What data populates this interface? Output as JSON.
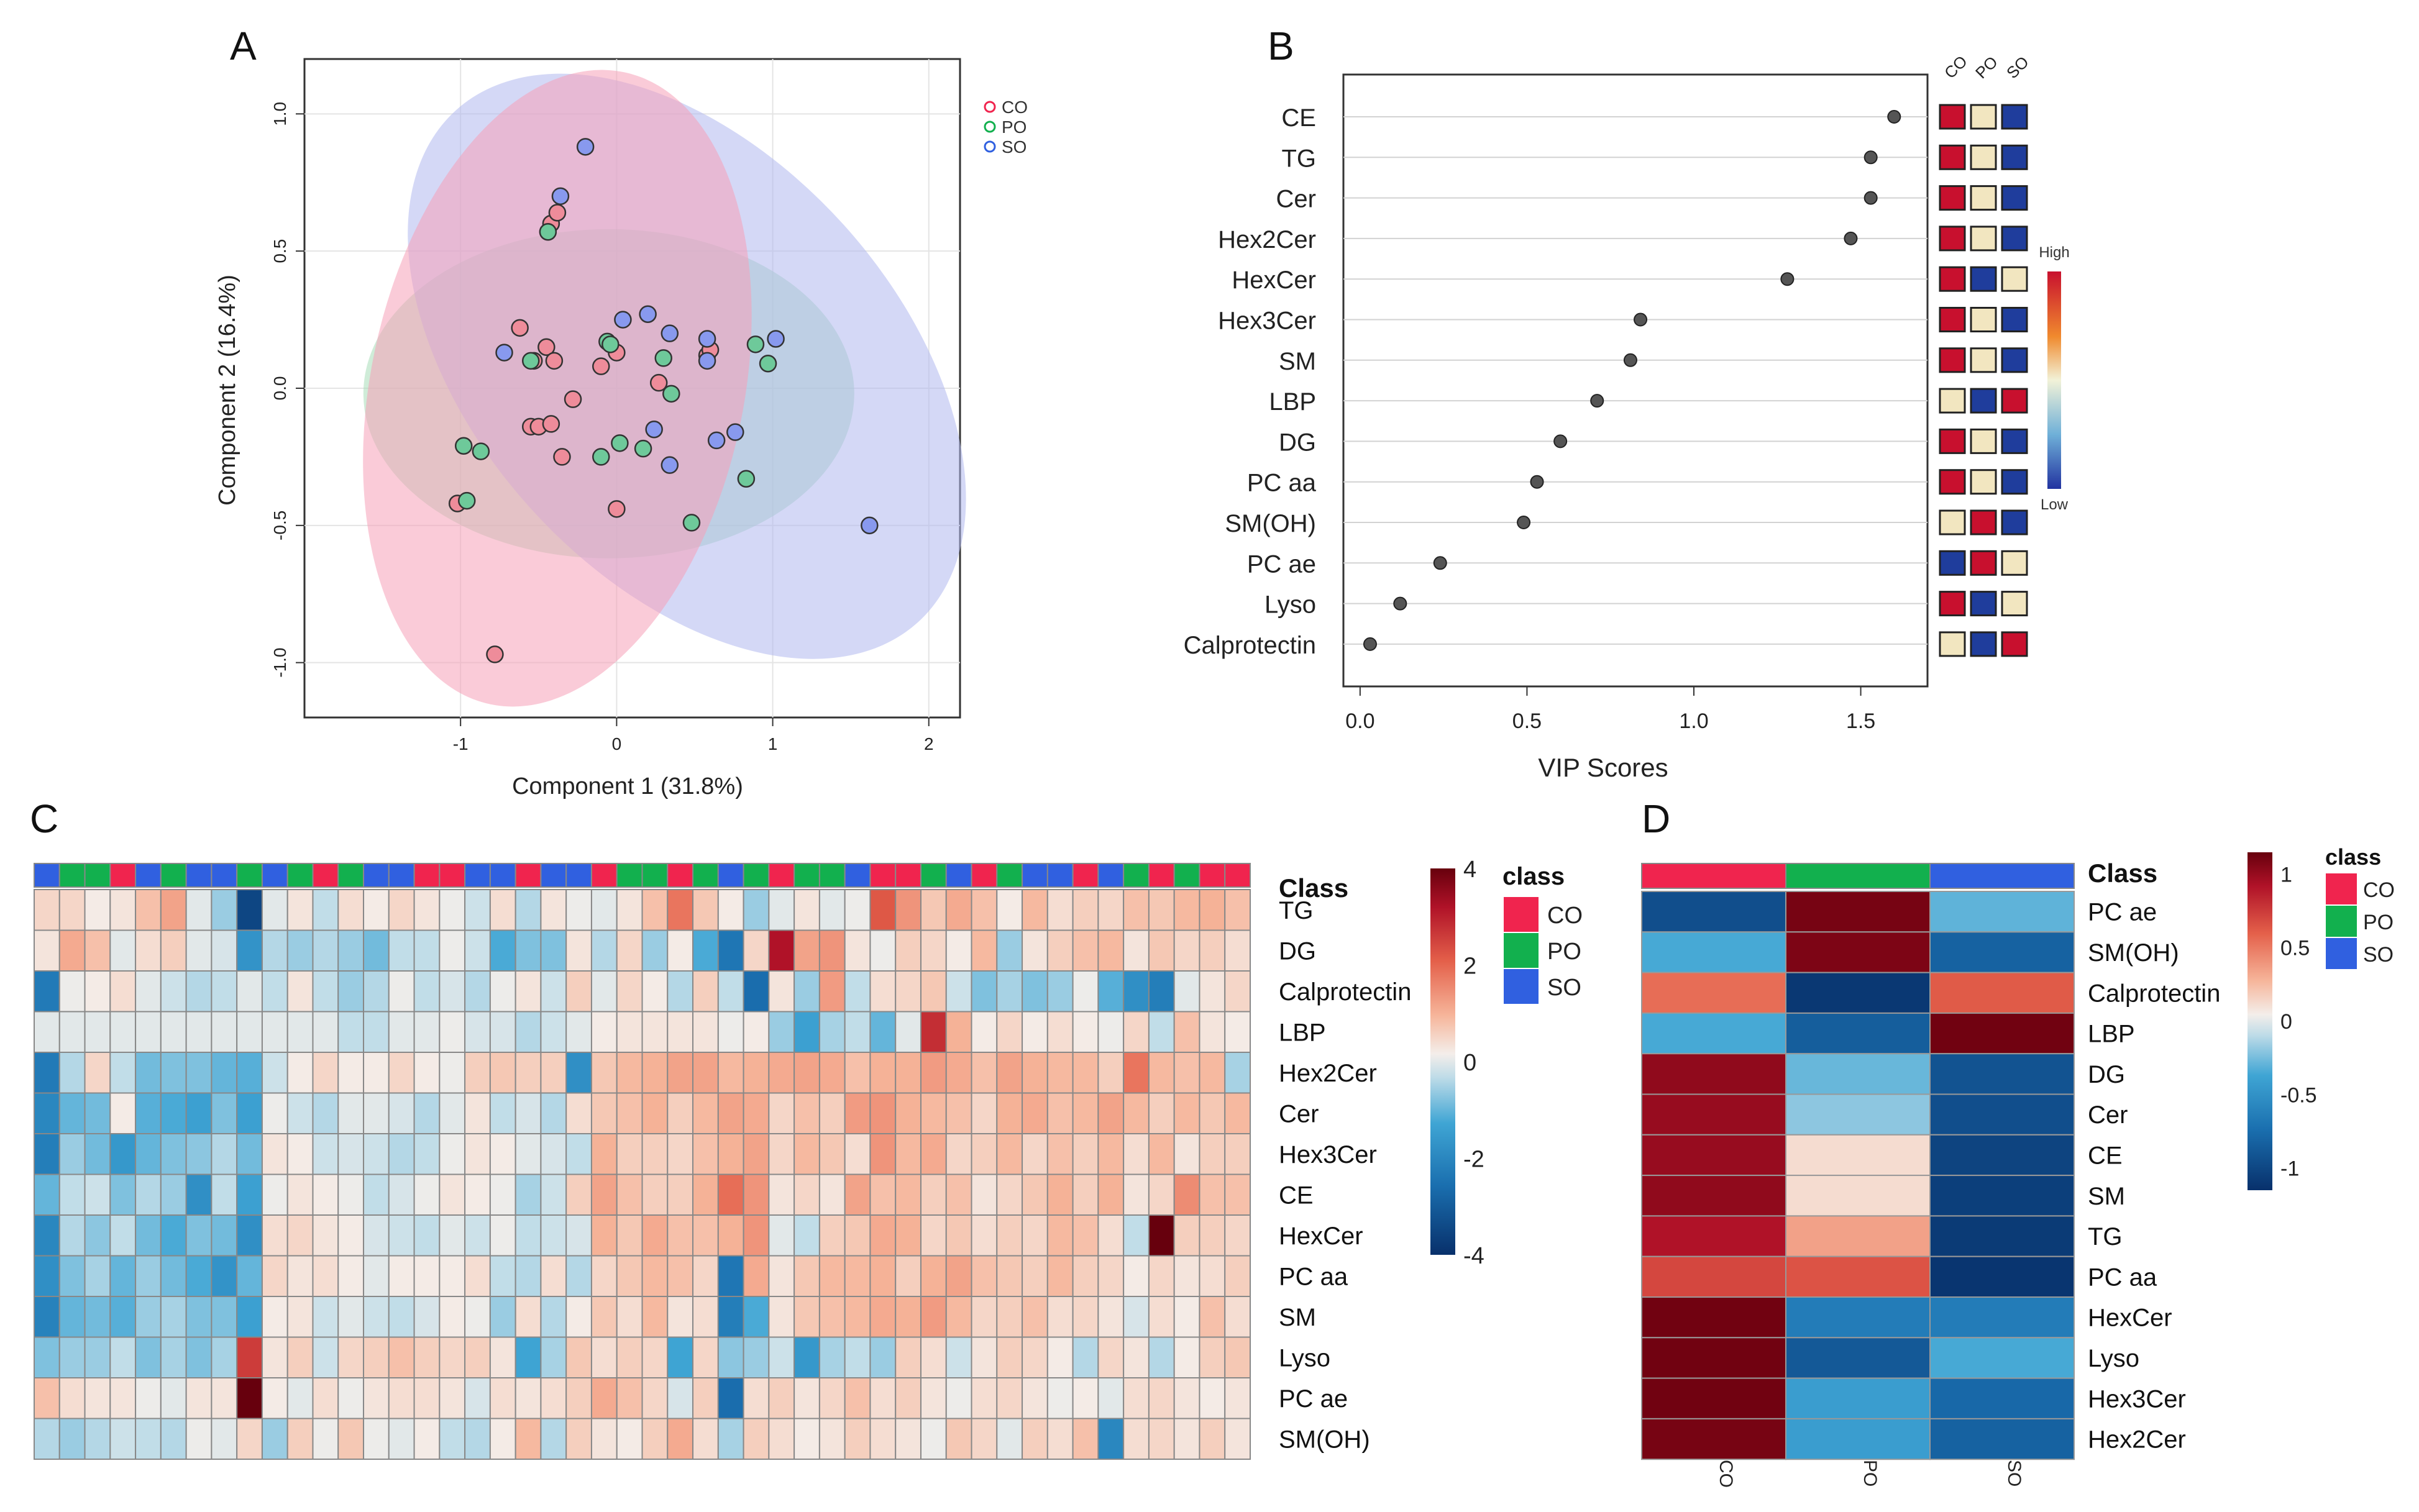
{
  "colors": {
    "CO": "#f0244e",
    "PO": "#12b04e",
    "SO": "#3060e0",
    "co_fill": "#ee8c9a",
    "po_fill": "#6ec99a",
    "so_fill": "#8899ee",
    "ell_co": "#f5a0b8",
    "ell_po": "#a8dcb8",
    "ell_so": "#b0b8ee",
    "heat_low": "#08306b",
    "heat_mid": "#f7f2f0",
    "heat_high": "#67000d",
    "vip_high": "#c8102e",
    "vip_mid": "#f2e6c0",
    "vip_low": "#1f3d9c"
  },
  "panels": {
    "A": "A",
    "B": "B",
    "C": "C",
    "D": "D"
  },
  "chart_data": [
    {
      "panel": "A",
      "type": "scatter",
      "title": "",
      "xlabel": "Component 1 (31.8%)",
      "ylabel": "Component 2 (16.4%)",
      "xlim": [
        -2,
        2.2
      ],
      "ylim": [
        -1.2,
        1.2
      ],
      "xticks": [
        "-1",
        "0",
        "1",
        "2"
      ],
      "yticks": [
        "1.0",
        "0.5",
        "0.0",
        "-0.5",
        "-1.0"
      ],
      "legend": [
        "CO",
        "PO",
        "SO"
      ],
      "series": [
        {
          "name": "CO",
          "points": [
            [
              -0.42,
              0.6
            ],
            [
              -0.38,
              0.64
            ],
            [
              -0.62,
              0.22
            ],
            [
              -0.45,
              0.15
            ],
            [
              -0.28,
              -0.04
            ],
            [
              -0.1,
              0.08
            ],
            [
              0.0,
              0.13
            ],
            [
              0.27,
              0.02
            ],
            [
              0.58,
              0.12
            ],
            [
              0.6,
              0.14
            ],
            [
              -0.53,
              0.1
            ],
            [
              -0.4,
              0.1
            ],
            [
              -0.55,
              -0.14
            ],
            [
              -0.5,
              -0.14
            ],
            [
              -0.42,
              -0.13
            ],
            [
              -0.35,
              -0.25
            ],
            [
              -1.02,
              -0.42
            ],
            [
              0.0,
              -0.44
            ],
            [
              -0.78,
              -0.97
            ]
          ]
        },
        {
          "name": "PO",
          "points": [
            [
              -0.44,
              0.57
            ],
            [
              -0.55,
              0.1
            ],
            [
              -0.06,
              0.17
            ],
            [
              -0.04,
              0.16
            ],
            [
              0.3,
              0.11
            ],
            [
              0.35,
              -0.02
            ],
            [
              0.89,
              0.16
            ],
            [
              0.97,
              0.09
            ],
            [
              -0.98,
              -0.21
            ],
            [
              -0.87,
              -0.23
            ],
            [
              -0.96,
              -0.41
            ],
            [
              -0.1,
              -0.25
            ],
            [
              0.02,
              -0.2
            ],
            [
              0.17,
              -0.22
            ],
            [
              0.48,
              -0.49
            ],
            [
              0.83,
              -0.33
            ]
          ]
        },
        {
          "name": "SO",
          "points": [
            [
              -0.2,
              0.88
            ],
            [
              -0.36,
              0.7
            ],
            [
              0.04,
              0.25
            ],
            [
              0.2,
              0.27
            ],
            [
              0.34,
              0.2
            ],
            [
              0.58,
              0.18
            ],
            [
              1.02,
              0.18
            ],
            [
              0.58,
              0.1
            ],
            [
              -0.72,
              0.13
            ],
            [
              0.24,
              -0.15
            ],
            [
              0.34,
              -0.28
            ],
            [
              0.64,
              -0.19
            ],
            [
              0.76,
              -0.16
            ],
            [
              1.62,
              -0.5
            ]
          ]
        }
      ]
    },
    {
      "panel": "B",
      "type": "dot",
      "xlabel": "VIP Scores",
      "xlim": [
        -0.05,
        1.7
      ],
      "xticks": [
        "0.0",
        "0.5",
        "1.0",
        "1.5"
      ],
      "columns": [
        "CO",
        "PO",
        "SO"
      ],
      "colorbar": {
        "high": "High",
        "low": "Low"
      },
      "categories": [
        "CE",
        "TG",
        "Cer",
        "Hex2Cer",
        "HexCer",
        "Hex3Cer",
        "SM",
        "LBP",
        "DG",
        "PC aa",
        "SM(OH)",
        "PC ae",
        "Lyso",
        "Calprotectin"
      ],
      "values": [
        1.6,
        1.53,
        1.53,
        1.47,
        1.28,
        0.84,
        0.81,
        0.71,
        0.6,
        0.53,
        0.49,
        0.24,
        0.12,
        0.03
      ],
      "levels": [
        [
          "H",
          "M",
          "L"
        ],
        [
          "H",
          "M",
          "L"
        ],
        [
          "H",
          "M",
          "L"
        ],
        [
          "H",
          "M",
          "L"
        ],
        [
          "H",
          "L",
          "M"
        ],
        [
          "H",
          "M",
          "L"
        ],
        [
          "H",
          "M",
          "L"
        ],
        [
          "M",
          "L",
          "H"
        ],
        [
          "H",
          "M",
          "L"
        ],
        [
          "H",
          "M",
          "L"
        ],
        [
          "M",
          "H",
          "L"
        ],
        [
          "L",
          "H",
          "M"
        ],
        [
          "H",
          "L",
          "M"
        ],
        [
          "M",
          "L",
          "H"
        ]
      ]
    },
    {
      "panel": "C",
      "type": "heatmap",
      "row_title": "Class",
      "rows": [
        "TG",
        "DG",
        "Calprotectin",
        "LBP",
        "Hex2Cer",
        "Cer",
        "Hex3Cer",
        "CE",
        "HexCer",
        "PC aa",
        "SM",
        "Lyso",
        "PC ae",
        "SM(OH)"
      ],
      "column_classes": [
        "SO",
        "PO",
        "PO",
        "CO",
        "SO",
        "PO",
        "SO",
        "SO",
        "PO",
        "SO",
        "PO",
        "CO",
        "PO",
        "SO",
        "SO",
        "CO",
        "CO",
        "SO",
        "SO",
        "CO",
        "SO",
        "SO",
        "CO",
        "PO",
        "PO",
        "CO",
        "PO",
        "SO",
        "PO",
        "CO",
        "PO",
        "PO",
        "SO",
        "CO",
        "CO",
        "PO",
        "SO",
        "CO",
        "PO",
        "SO",
        "SO",
        "CO",
        "SO",
        "PO",
        "CO",
        "PO",
        "CO",
        "CO"
      ],
      "legend_title": "class",
      "legend": [
        "CO",
        "PO",
        "SO"
      ],
      "colorbar_ticks": [
        "4",
        "2",
        "0",
        "-2",
        "-4"
      ],
      "value_range": [
        -4,
        4
      ],
      "values": [
        [
          0.5,
          0.5,
          0.2,
          0.3,
          0.8,
          1.2,
          0.0,
          -0.6,
          -3.5,
          0.0,
          0.3,
          -0.3,
          0.4,
          0.2,
          0.5,
          0.3,
          0.1,
          -0.2,
          0.4,
          -0.4,
          0.3,
          0.1,
          0.0,
          0.3,
          0.8,
          1.8,
          0.7,
          0.2,
          -0.6,
          0.0,
          0.3,
          0.0,
          0.1,
          2.2,
          1.4,
          0.7,
          1.1,
          0.8,
          0.2,
          0.9,
          0.4,
          0.6,
          0.5,
          0.8,
          0.7,
          0.9,
          1.0,
          0.8
        ],
        [
          0.3,
          1.1,
          0.8,
          0.0,
          0.4,
          0.6,
          0.0,
          -0.1,
          -1.7,
          -0.4,
          -0.6,
          -0.4,
          -0.6,
          -0.9,
          -0.3,
          -0.3,
          0.1,
          -0.2,
          -1.2,
          -0.8,
          -0.8,
          0.3,
          -0.4,
          0.5,
          -0.6,
          0.2,
          -1.2,
          -2.4,
          0.5,
          3.2,
          1.2,
          1.4,
          0.3,
          0.1,
          0.6,
          0.5,
          0.2,
          0.9,
          -0.6,
          0.3,
          0.6,
          0.8,
          0.9,
          0.3,
          0.7,
          0.5,
          0.6,
          0.4
        ],
        [
          -2.3,
          0.1,
          0.2,
          0.4,
          0.0,
          -0.2,
          -0.4,
          -0.3,
          0.0,
          -0.3,
          0.3,
          -0.3,
          -0.6,
          -0.4,
          0.1,
          -0.3,
          -0.1,
          -0.4,
          0.1,
          0.3,
          -0.2,
          0.6,
          0.0,
          0.5,
          0.2,
          -0.4,
          0.6,
          -0.3,
          -2.6,
          0.3,
          -0.6,
          1.3,
          -0.3,
          0.4,
          0.5,
          0.7,
          -0.2,
          -0.8,
          -0.5,
          -0.8,
          -0.6,
          0.1,
          -1.1,
          -1.8,
          -2.2,
          0.0,
          0.3,
          0.5
        ],
        [
          0.0,
          0.0,
          0.0,
          0.0,
          0.0,
          0.0,
          0.0,
          0.0,
          0.0,
          0.0,
          0.0,
          0.0,
          -0.3,
          -0.3,
          0.0,
          0.0,
          0.1,
          -0.1,
          -0.1,
          -0.4,
          -0.2,
          0.0,
          0.2,
          0.3,
          0.3,
          0.3,
          0.3,
          0.1,
          0.2,
          -0.6,
          -1.4,
          -0.5,
          -0.3,
          -1.0,
          0.0,
          2.8,
          1.0,
          0.2,
          0.5,
          0.2,
          0.4,
          0.2,
          0.1,
          0.5,
          -0.3,
          0.8,
          0.3,
          0.2
        ],
        [
          -2.3,
          -0.4,
          0.5,
          -0.3,
          -0.9,
          -0.8,
          -0.8,
          -1.0,
          -1.1,
          -0.2,
          0.2,
          0.5,
          0.2,
          0.2,
          0.5,
          0.2,
          0.1,
          0.6,
          0.7,
          0.6,
          0.6,
          -1.8,
          0.7,
          0.9,
          1.0,
          1.2,
          1.2,
          0.9,
          1.0,
          1.1,
          1.2,
          1.1,
          0.8,
          1.0,
          1.0,
          1.3,
          1.1,
          0.8,
          1.2,
          1.0,
          0.9,
          0.9,
          0.6,
          1.8,
          0.9,
          0.8,
          0.9,
          -0.5
        ],
        [
          -2.0,
          -1.0,
          -0.9,
          0.2,
          -1.1,
          -1.2,
          -1.4,
          -0.8,
          -1.4,
          0.1,
          -0.2,
          -0.4,
          0.0,
          0.0,
          -0.1,
          -0.4,
          0.0,
          0.3,
          -0.3,
          -0.1,
          -0.4,
          0.4,
          0.7,
          0.8,
          1.0,
          0.6,
          0.9,
          1.2,
          1.1,
          0.5,
          0.8,
          0.6,
          1.3,
          1.4,
          1.0,
          0.9,
          0.8,
          0.5,
          1.0,
          1.1,
          0.8,
          0.9,
          1.2,
          0.9,
          0.6,
          0.9,
          0.7,
          0.9
        ],
        [
          -2.2,
          -0.6,
          -0.9,
          -1.6,
          -1.0,
          -0.8,
          -0.7,
          -0.4,
          -0.9,
          0.3,
          0.2,
          -0.2,
          -0.1,
          -0.2,
          -0.4,
          -0.3,
          0.1,
          0.3,
          0.2,
          0.0,
          -0.1,
          -0.3,
          1.0,
          0.6,
          0.6,
          0.5,
          0.8,
          1.0,
          1.2,
          0.5,
          0.9,
          0.7,
          0.4,
          1.4,
          0.9,
          1.1,
          0.5,
          0.6,
          0.9,
          0.5,
          0.8,
          0.6,
          0.9,
          0.4,
          0.9,
          0.3,
          0.6,
          0.6
        ],
        [
          -1.0,
          -0.3,
          -0.2,
          -0.8,
          -0.4,
          -0.6,
          -1.8,
          -0.3,
          -1.4,
          0.1,
          0.3,
          0.2,
          0.1,
          -0.3,
          -0.1,
          0.1,
          0.3,
          0.2,
          0.1,
          -0.5,
          -0.2,
          0.6,
          1.2,
          0.8,
          0.6,
          0.6,
          1.0,
          1.9,
          1.4,
          0.3,
          0.5,
          0.3,
          1.2,
          0.8,
          0.9,
          0.6,
          0.8,
          0.3,
          0.5,
          0.7,
          1.0,
          0.6,
          1.0,
          0.3,
          0.5,
          1.5,
          0.8,
          0.8
        ],
        [
          -2.0,
          -0.4,
          -0.7,
          -0.3,
          -0.9,
          -1.2,
          -0.8,
          -0.9,
          -1.8,
          0.4,
          0.5,
          0.3,
          0.2,
          -0.1,
          -0.2,
          -0.3,
          0.0,
          -0.2,
          0.1,
          -0.3,
          -0.2,
          -0.1,
          1.0,
          0.7,
          1.1,
          0.8,
          0.8,
          1.0,
          1.4,
          0.0,
          -0.3,
          0.6,
          0.7,
          1.1,
          1.0,
          0.5,
          0.7,
          0.4,
          0.6,
          0.5,
          0.9,
          0.8,
          0.4,
          -0.3,
          4.0,
          0.6,
          0.6,
          0.5
        ],
        [
          -1.8,
          -0.8,
          -0.5,
          -1.0,
          -0.6,
          -0.9,
          -1.2,
          -1.7,
          -1.0,
          0.5,
          0.3,
          0.4,
          0.2,
          0.0,
          0.2,
          0.2,
          0.2,
          0.4,
          -0.3,
          -0.4,
          0.4,
          -0.4,
          0.5,
          0.7,
          0.9,
          0.8,
          0.5,
          -2.4,
          1.1,
          0.3,
          0.7,
          0.9,
          0.9,
          1.0,
          0.6,
          1.0,
          1.2,
          0.8,
          0.7,
          0.6,
          0.9,
          0.6,
          0.5,
          0.2,
          0.5,
          0.3,
          0.4,
          0.6
        ],
        [
          -2.1,
          -1.0,
          -0.9,
          -1.1,
          -0.6,
          -0.5,
          -0.8,
          -0.8,
          -1.4,
          0.2,
          0.3,
          -0.2,
          0.0,
          -0.2,
          -0.3,
          -0.1,
          0.2,
          0.1,
          -0.6,
          0.4,
          -0.4,
          0.2,
          0.7,
          0.4,
          0.9,
          0.3,
          0.4,
          -2.2,
          -1.2,
          0.3,
          0.7,
          0.8,
          0.9,
          1.1,
          1.0,
          1.3,
          0.9,
          0.5,
          0.6,
          0.8,
          0.4,
          0.5,
          0.3,
          -0.1,
          0.4,
          0.2,
          0.8,
          0.4
        ],
        [
          -0.8,
          -0.6,
          -0.6,
          -0.3,
          -0.8,
          -0.5,
          -0.8,
          -0.5,
          2.6,
          0.3,
          0.6,
          -0.2,
          0.5,
          0.6,
          0.8,
          0.6,
          0.5,
          0.6,
          0.3,
          -1.3,
          -0.5,
          0.7,
          0.4,
          0.6,
          0.5,
          -1.3,
          0.5,
          -0.7,
          -0.6,
          -0.2,
          -1.6,
          -0.5,
          -0.3,
          -0.6,
          0.6,
          0.4,
          -0.2,
          0.3,
          0.6,
          0.5,
          0.2,
          -0.4,
          0.5,
          0.3,
          -0.4,
          0.2,
          0.6,
          0.7
        ],
        [
          0.8,
          0.4,
          0.3,
          0.3,
          0.1,
          0.0,
          0.3,
          0.3,
          4.2,
          0.2,
          0.0,
          0.4,
          0.1,
          0.3,
          0.4,
          0.4,
          0.3,
          -0.1,
          0.4,
          0.3,
          0.4,
          0.6,
          1.1,
          0.8,
          0.5,
          -0.1,
          0.6,
          -2.6,
          0.4,
          0.6,
          0.3,
          0.5,
          0.8,
          0.4,
          0.6,
          0.3,
          0.1,
          0.4,
          0.5,
          0.3,
          0.1,
          0.2,
          0.0,
          0.4,
          0.5,
          0.3,
          0.2,
          0.3
        ],
        [
          -0.4,
          -0.6,
          -0.4,
          -0.2,
          -0.3,
          -0.4,
          0.1,
          0.0,
          0.5,
          -0.6,
          0.6,
          0.1,
          0.7,
          0.1,
          0.0,
          0.2,
          -0.3,
          -0.4,
          0.2,
          0.9,
          -0.4,
          0.6,
          0.3,
          0.2,
          0.6,
          1.1,
          0.4,
          -0.5,
          0.6,
          0.4,
          0.2,
          0.3,
          0.6,
          0.4,
          0.3,
          0.1,
          0.7,
          0.5,
          0.0,
          0.6,
          0.4,
          0.8,
          -2.0,
          0.4,
          0.5,
          0.3,
          0.6,
          0.3
        ]
      ]
    },
    {
      "panel": "D",
      "type": "heatmap",
      "row_title": "Class",
      "rows": [
        "PC ae",
        "SM(OH)",
        "Calprotectin",
        "LBP",
        "DG",
        "Cer",
        "CE",
        "SM",
        "TG",
        "PC aa",
        "HexCer",
        "Lyso",
        "Hex3Cer",
        "Hex2Cer"
      ],
      "columns": [
        "CO",
        "PO",
        "SO"
      ],
      "legend_title": "class",
      "legend": [
        "CO",
        "PO",
        "SO"
      ],
      "colorbar_ticks": [
        "1",
        "0.5",
        "0",
        "-0.5",
        "-1"
      ],
      "value_range": [
        -1.15,
        1.15
      ],
      "values": [
        [
          -0.95,
          1.1,
          -0.3
        ],
        [
          -0.35,
          1.08,
          -0.82
        ],
        [
          0.55,
          -1.1,
          0.62
        ],
        [
          -0.35,
          -0.85,
          1.12
        ],
        [
          1.02,
          -0.28,
          -0.92
        ],
        [
          1.0,
          -0.2,
          -0.95
        ],
        [
          1.0,
          0.12,
          -1.02
        ],
        [
          1.02,
          0.12,
          -1.05
        ],
        [
          0.92,
          0.35,
          -1.08
        ],
        [
          0.7,
          0.65,
          -1.12
        ],
        [
          1.12,
          -0.65,
          -0.65
        ],
        [
          1.12,
          -0.88,
          -0.35
        ],
        [
          1.12,
          -0.42,
          -0.78
        ],
        [
          1.1,
          -0.42,
          -0.82
        ]
      ]
    }
  ]
}
